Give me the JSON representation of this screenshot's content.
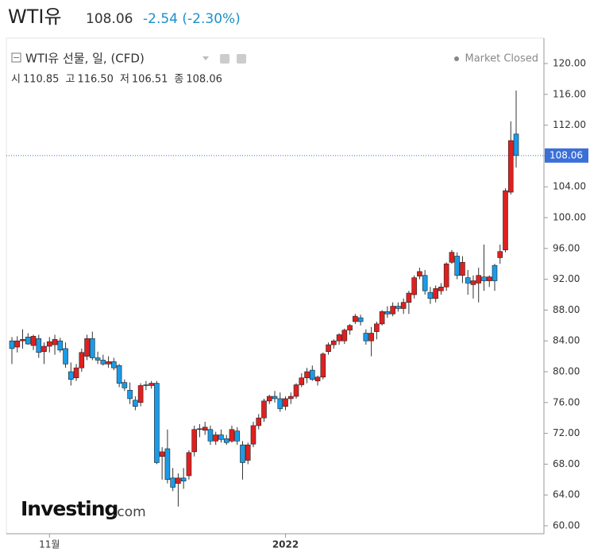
{
  "header": {
    "name": "WTI유",
    "price": "108.06",
    "change": "-2.54 (-2.30%)"
  },
  "chart_data": {
    "type": "candlestick",
    "title": "WTI유 선물, 일, (CFD)",
    "status": "Market Closed",
    "ohlc_legend": [
      {
        "label": "시",
        "value": "110.85"
      },
      {
        "label": "고",
        "value": "116.50"
      },
      {
        "label": "저",
        "value": "106.51"
      },
      {
        "label": "종",
        "value": "108.06"
      }
    ],
    "watermark": [
      "Investing",
      ".com"
    ],
    "up_color": "#e0201f",
    "down_color": "#1a9be8",
    "ylim": [
      59,
      124
    ],
    "yticks": [
      {
        "value": 60,
        "label": "60.00"
      },
      {
        "value": 64,
        "label": "64.00"
      },
      {
        "value": 68,
        "label": "68.00"
      },
      {
        "value": 72,
        "label": "72.00"
      },
      {
        "value": 76,
        "label": "76.00"
      },
      {
        "value": 80,
        "label": "80.00"
      },
      {
        "value": 84,
        "label": "84.00"
      },
      {
        "value": 88,
        "label": "88.00"
      },
      {
        "value": 92,
        "label": "92.00"
      },
      {
        "value": 96,
        "label": "96.00"
      },
      {
        "value": 100,
        "label": "100.00"
      },
      {
        "value": 104,
        "label": "104.00"
      },
      {
        "value": 108,
        "label": "108.00"
      },
      {
        "value": 112,
        "label": "112.00"
      },
      {
        "value": 116,
        "label": "116.00"
      },
      {
        "value": 120,
        "label": "120.00"
      }
    ],
    "last_price": {
      "value": 108.06,
      "label": "108.06"
    },
    "categories": [
      null,
      null,
      null,
      null,
      null,
      null,
      null,
      "11월",
      null,
      null,
      null,
      null,
      null,
      null,
      null,
      null,
      null,
      null,
      null,
      null,
      null,
      null,
      null,
      null,
      null,
      null,
      null,
      null,
      null,
      null,
      null,
      null,
      null,
      null,
      null,
      null,
      null,
      null,
      null,
      null,
      null,
      null,
      null,
      null,
      null,
      null,
      null,
      null,
      null,
      null,
      null,
      "2022",
      null,
      null,
      null,
      null,
      null,
      null,
      null,
      null,
      null,
      null,
      null,
      null,
      null,
      null,
      null,
      null,
      null,
      null,
      null,
      null,
      null,
      null,
      null,
      null,
      null,
      null,
      null,
      null,
      null,
      null,
      null,
      null,
      null,
      null,
      null,
      null,
      null,
      null,
      null,
      null,
      null,
      null,
      null
    ],
    "ohlc": [
      [
        84.0,
        84.5,
        81.0,
        83.0
      ],
      [
        83.2,
        84.6,
        82.5,
        84.0
      ],
      [
        84.0,
        85.5,
        83.0,
        84.2
      ],
      [
        84.5,
        85.0,
        83.5,
        83.6
      ],
      [
        83.4,
        84.8,
        82.8,
        84.6
      ],
      [
        84.3,
        84.8,
        81.8,
        82.5
      ],
      [
        82.6,
        83.8,
        81.0,
        83.3
      ],
      [
        83.3,
        84.5,
        82.5,
        83.9
      ],
      [
        83.5,
        84.8,
        82.2,
        84.2
      ],
      [
        84.0,
        84.4,
        82.5,
        82.8
      ],
      [
        83.0,
        83.8,
        80.5,
        81.0
      ],
      [
        80.0,
        81.2,
        78.2,
        79.0
      ],
      [
        79.2,
        81.0,
        78.8,
        80.5
      ],
      [
        80.5,
        83.0,
        80.0,
        82.5
      ],
      [
        82.0,
        84.8,
        81.5,
        84.3
      ],
      [
        84.3,
        85.2,
        81.5,
        81.8
      ],
      [
        81.8,
        82.6,
        81.0,
        81.5
      ],
      [
        81.5,
        82.2,
        80.8,
        81.0
      ],
      [
        81.0,
        82.0,
        80.5,
        81.3
      ],
      [
        81.3,
        81.8,
        80.2,
        80.5
      ],
      [
        80.8,
        81.0,
        78.0,
        78.5
      ],
      [
        78.6,
        79.0,
        77.5,
        77.9
      ],
      [
        77.6,
        78.6,
        75.8,
        76.5
      ],
      [
        76.3,
        76.8,
        75.0,
        75.5
      ],
      [
        76.0,
        78.5,
        75.5,
        78.2
      ],
      [
        78.3,
        78.8,
        77.6,
        78.2
      ],
      [
        78.2,
        78.8,
        77.8,
        78.5
      ],
      [
        78.5,
        78.8,
        68.0,
        68.2
      ],
      [
        69.0,
        70.2,
        66.0,
        69.6
      ],
      [
        70.0,
        72.5,
        65.5,
        66.0
      ],
      [
        66.2,
        67.5,
        64.5,
        65.0
      ],
      [
        65.5,
        66.8,
        62.5,
        66.2
      ],
      [
        66.2,
        67.5,
        64.8,
        65.8
      ],
      [
        66.5,
        69.8,
        66.0,
        69.5
      ],
      [
        69.6,
        73.0,
        69.0,
        72.5
      ],
      [
        72.5,
        73.2,
        71.5,
        72.6
      ],
      [
        72.4,
        73.5,
        71.8,
        72.8
      ],
      [
        72.5,
        73.0,
        70.5,
        71.0
      ],
      [
        71.0,
        72.2,
        70.5,
        71.8
      ],
      [
        71.8,
        72.5,
        70.8,
        71.2
      ],
      [
        71.3,
        71.8,
        70.5,
        70.8
      ],
      [
        71.0,
        73.0,
        70.8,
        72.5
      ],
      [
        72.3,
        72.8,
        70.5,
        71.0
      ],
      [
        70.5,
        71.0,
        66.0,
        68.2
      ],
      [
        68.5,
        70.8,
        68.0,
        70.5
      ],
      [
        70.6,
        73.5,
        70.2,
        73.0
      ],
      [
        73.0,
        74.5,
        72.5,
        74.0
      ],
      [
        74.0,
        76.5,
        73.5,
        76.2
      ],
      [
        76.2,
        77.0,
        75.8,
        76.8
      ],
      [
        76.8,
        77.5,
        76.0,
        76.5
      ],
      [
        76.5,
        77.3,
        74.8,
        75.2
      ],
      [
        75.5,
        76.8,
        75.0,
        76.5
      ],
      [
        76.5,
        77.3,
        75.8,
        76.8
      ],
      [
        76.8,
        78.5,
        76.5,
        78.3
      ],
      [
        78.3,
        79.8,
        78.0,
        79.2
      ],
      [
        79.2,
        80.5,
        78.5,
        80.0
      ],
      [
        80.2,
        80.8,
        78.8,
        79.0
      ],
      [
        78.8,
        79.5,
        78.2,
        79.3
      ],
      [
        79.3,
        82.5,
        79.0,
        82.3
      ],
      [
        82.6,
        83.8,
        82.2,
        83.5
      ],
      [
        83.5,
        84.2,
        83.0,
        84.0
      ],
      [
        84.0,
        85.0,
        83.5,
        84.8
      ],
      [
        84.0,
        85.6,
        83.6,
        85.4
      ],
      [
        85.4,
        86.2,
        84.8,
        86.0
      ],
      [
        86.5,
        87.5,
        86.2,
        87.2
      ],
      [
        87.0,
        87.4,
        86.0,
        86.5
      ],
      [
        85.0,
        85.5,
        83.5,
        84.0
      ],
      [
        84.0,
        85.8,
        82.0,
        85.0
      ],
      [
        85.2,
        86.5,
        84.2,
        86.2
      ],
      [
        86.2,
        88.0,
        86.0,
        87.8
      ],
      [
        87.8,
        88.5,
        87.0,
        87.5
      ],
      [
        87.5,
        89.0,
        87.2,
        88.5
      ],
      [
        88.5,
        89.0,
        87.8,
        88.2
      ],
      [
        88.2,
        89.5,
        87.5,
        89.0
      ],
      [
        89.0,
        90.5,
        87.5,
        90.2
      ],
      [
        90.0,
        92.5,
        89.5,
        92.2
      ],
      [
        92.4,
        93.5,
        92.0,
        93.0
      ],
      [
        92.5,
        93.2,
        90.0,
        90.5
      ],
      [
        90.3,
        91.0,
        88.8,
        89.5
      ],
      [
        89.5,
        91.2,
        89.0,
        90.8
      ],
      [
        90.5,
        91.5,
        90.0,
        91.0
      ],
      [
        91.0,
        94.2,
        90.5,
        94.0
      ],
      [
        94.2,
        95.8,
        94.0,
        95.5
      ],
      [
        95.0,
        95.5,
        92.0,
        92.5
      ],
      [
        92.5,
        95.0,
        91.5,
        94.2
      ],
      [
        92.2,
        93.2,
        90.0,
        91.5
      ],
      [
        91.3,
        92.5,
        89.5,
        91.8
      ],
      [
        91.5,
        93.5,
        89.0,
        92.5
      ],
      [
        92.3,
        96.5,
        90.5,
        91.8
      ],
      [
        91.8,
        92.5,
        91.0,
        92.3
      ],
      [
        93.8,
        94.0,
        90.5,
        91.8
      ],
      [
        94.8,
        96.5,
        94.0,
        95.6
      ],
      [
        95.8,
        103.8,
        95.5,
        103.5
      ],
      [
        103.3,
        112.5,
        103.0,
        110.0
      ],
      [
        110.85,
        116.5,
        106.51,
        108.06
      ]
    ]
  }
}
